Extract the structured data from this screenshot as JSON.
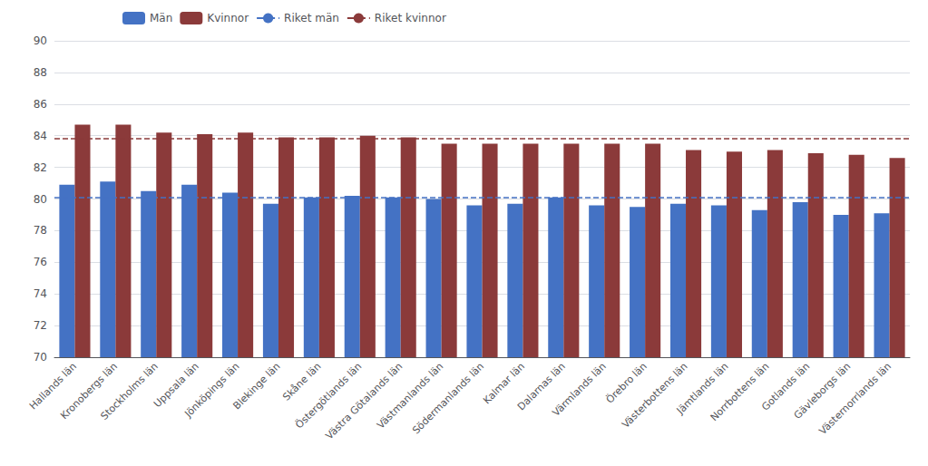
{
  "chart_data": {
    "type": "bar",
    "categories": [
      "Hallands län",
      "Kronobergs län",
      "Stockholms län",
      "Uppsala län",
      "Jönköpings län",
      "Blekinge län",
      "Skåne län",
      "Östergötlands län",
      "Västra Götalands län",
      "Västmanlands län",
      "Södermanlands län",
      "Kalmar län",
      "Dalarnas län",
      "Värmlands län",
      "Örebro län",
      "Västerbottens län",
      "Jämtlands län",
      "Norrbottens län",
      "Gotlands län",
      "Gävleborgs län",
      "Västernorrlands län"
    ],
    "series": [
      {
        "name": "Män",
        "color": "#4472C4",
        "values": [
          80.9,
          81.1,
          80.5,
          80.9,
          80.4,
          79.7,
          80.1,
          80.2,
          80.1,
          80.0,
          79.6,
          79.7,
          80.1,
          79.6,
          79.5,
          79.7,
          79.6,
          79.3,
          79.8,
          79.0,
          79.1
        ]
      },
      {
        "name": "Kvinnor",
        "color": "#8B3A3A",
        "values": [
          84.7,
          84.7,
          84.2,
          84.1,
          84.2,
          83.9,
          83.9,
          84.0,
          83.9,
          83.5,
          83.5,
          83.5,
          83.5,
          83.5,
          83.5,
          83.1,
          83.0,
          83.1,
          82.9,
          82.8,
          82.6
        ]
      }
    ],
    "reference_lines": [
      {
        "name": "Riket män",
        "value": 80.1,
        "color": "#4472C4",
        "line_style": "dashed"
      },
      {
        "name": "Riket kvinnor",
        "value": 83.8,
        "color": "#8B3A3A",
        "line_style": "dashed"
      }
    ],
    "ylim": [
      70,
      90
    ],
    "yticks": [
      70,
      72,
      74,
      76,
      78,
      80,
      82,
      84,
      86,
      88,
      90
    ],
    "grid": true,
    "legend": "upper left"
  }
}
